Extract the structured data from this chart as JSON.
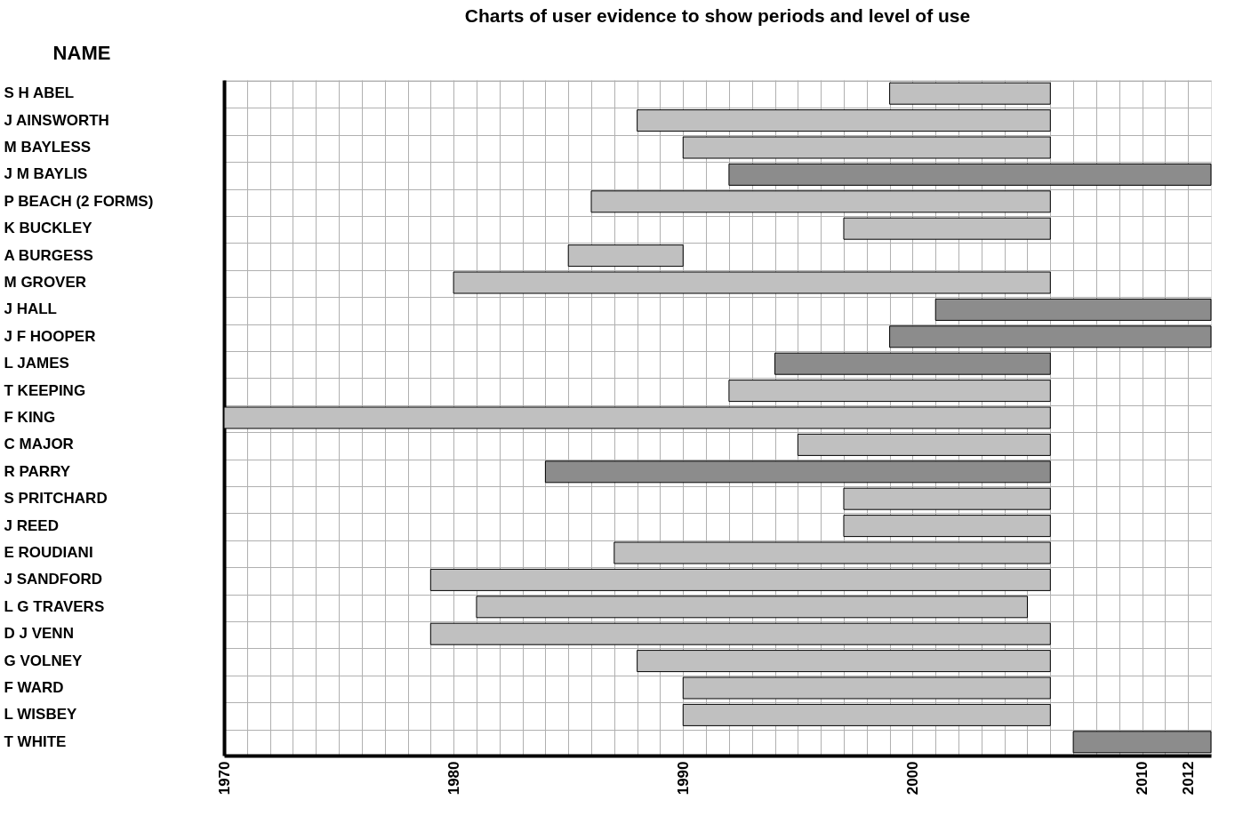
{
  "chart_data": {
    "type": "bar",
    "orientation": "horizontal",
    "title": "Charts of user evidence to show periods and level of use",
    "ylabel": "NAME",
    "categories": [
      "S H ABEL",
      "J AINSWORTH",
      "M BAYLESS",
      "J M BAYLIS",
      "P BEACH (2 FORMS)",
      "K BUCKLEY",
      "A BURGESS",
      "M GROVER",
      "J HALL",
      "J F HOOPER",
      "L JAMES",
      "T KEEPING",
      "F KING",
      "C MAJOR",
      "R PARRY",
      "S PRITCHARD",
      "J REED",
      "E ROUDIANI",
      "J SANDFORD",
      "L G TRAVERS",
      "D J VENN",
      "G VOLNEY",
      "F WARD",
      "L WISBEY",
      "T WHITE"
    ],
    "series": [
      {
        "color": "#c0c0c0",
        "base": [
          1999,
          1988,
          1990,
          null,
          1986,
          1997,
          1985,
          1980,
          null,
          null,
          null,
          1992,
          1970,
          1995,
          null,
          1997,
          1997,
          1987,
          1979,
          1981,
          1979,
          1988,
          1990,
          1990,
          null
        ],
        "values": [
          7,
          18,
          16,
          null,
          20,
          9,
          5,
          26,
          null,
          null,
          null,
          14,
          36,
          11,
          null,
          9,
          9,
          19,
          27,
          24,
          27,
          18,
          16,
          16,
          null
        ]
      },
      {
        "color": "#8c8c8c",
        "base": [
          null,
          null,
          null,
          1992,
          null,
          null,
          null,
          null,
          2001,
          1999,
          1994,
          null,
          null,
          null,
          1984,
          null,
          null,
          null,
          null,
          null,
          null,
          null,
          null,
          null,
          2007
        ],
        "values": [
          null,
          null,
          null,
          21,
          null,
          null,
          null,
          null,
          12,
          14,
          12,
          null,
          null,
          null,
          22,
          null,
          null,
          null,
          null,
          null,
          null,
          null,
          null,
          null,
          6
        ]
      }
    ],
    "xlim": [
      1970,
      2013
    ],
    "xticks": [
      1970,
      {
        "value": 1971,
        "label": null
      },
      {
        "value": 1972,
        "label": null
      },
      {
        "value": 1973,
        "label": null
      },
      {
        "value": 1974,
        "label": null
      },
      {
        "value": 1975,
        "label": null
      },
      {
        "value": 1976,
        "label": null
      },
      {
        "value": 1977,
        "label": null
      },
      {
        "value": 1978,
        "label": null
      },
      {
        "value": 1979,
        "label": null
      },
      1980,
      {
        "value": 1981,
        "label": null
      },
      {
        "value": 1982,
        "label": null
      },
      {
        "value": 1983,
        "label": null
      },
      {
        "value": 1984,
        "label": null
      },
      {
        "value": 1985,
        "label": null
      },
      {
        "value": 1986,
        "label": null
      },
      {
        "value": 1987,
        "label": null
      },
      {
        "value": 1988,
        "label": null
      },
      {
        "value": 1989,
        "label": null
      },
      1990,
      {
        "value": 1991,
        "label": null
      },
      {
        "value": 1992,
        "label": null
      },
      {
        "value": 1993,
        "label": null
      },
      {
        "value": 1994,
        "label": null
      },
      {
        "value": 1995,
        "label": null
      },
      {
        "value": 1996,
        "label": null
      },
      {
        "value": 1997,
        "label": null
      },
      {
        "value": 1998,
        "label": null
      },
      {
        "value": 1999,
        "label": null
      },
      2000,
      {
        "value": 2001,
        "label": null
      },
      {
        "value": 2002,
        "label": null
      },
      {
        "value": 2003,
        "label": null
      },
      {
        "value": 2004,
        "label": null
      },
      {
        "value": 2005,
        "label": null
      },
      {
        "value": 2006,
        "label": null
      },
      {
        "value": 2007,
        "label": null
      },
      {
        "value": 2008,
        "label": null
      },
      {
        "value": 2009,
        "label": null
      },
      2010,
      {
        "value": 2011,
        "label": null
      },
      2012
    ],
    "grid": true
  }
}
